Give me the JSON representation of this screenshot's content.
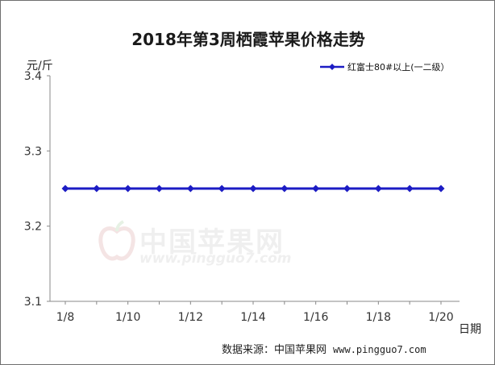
{
  "chart_data": {
    "type": "line",
    "title": "2018年第3周栖霞苹果价格走势",
    "ylabel": "元/斤",
    "xlabel": "日期",
    "ylim": [
      3.1,
      3.4
    ],
    "yticks": [
      "3.1",
      "3.2",
      "3.3",
      "3.4"
    ],
    "categories": [
      "1/8",
      "",
      "1/10",
      "",
      "1/12",
      "",
      "1/14",
      "",
      "1/16",
      "",
      "1/18",
      "",
      "1/20"
    ],
    "series": [
      {
        "name": "红富士80#以上(一二级）",
        "values": [
          3.25,
          3.25,
          3.25,
          3.25,
          3.25,
          3.25,
          3.25,
          3.25,
          3.25,
          3.25,
          3.25,
          3.25,
          3.25
        ],
        "color": "#1c1cc4"
      }
    ],
    "grid": false,
    "legend": "top-right"
  },
  "source": {
    "label": "数据来源：中国苹果网",
    "url": "www.pingguo7.com"
  },
  "watermark": {
    "cn": "中国苹果网",
    "url": "www.pingguo7.com"
  }
}
